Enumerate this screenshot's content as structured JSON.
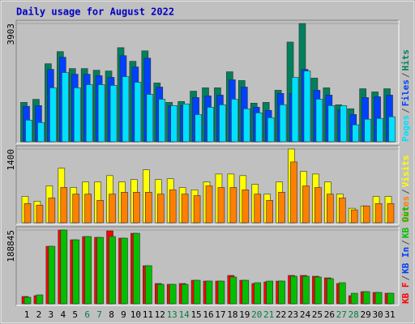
{
  "chart_data": [
    {
      "type": "bar",
      "title": "Daily usage for August 2022",
      "categories": [
        "1",
        "2",
        "3",
        "4",
        "5",
        "6",
        "7",
        "8",
        "9",
        "10",
        "11",
        "12",
        "13",
        "14",
        "15",
        "16",
        "17",
        "18",
        "19",
        "20",
        "21",
        "22",
        "23",
        "24",
        "25",
        "26",
        "27",
        "28",
        "29",
        "30",
        "31"
      ],
      "category_colors": [
        "#000000",
        "#000000",
        "#000000",
        "#000000",
        "#000000",
        "#008040",
        "#008040",
        "#000000",
        "#000000",
        "#000000",
        "#000000",
        "#000000",
        "#008040",
        "#008040",
        "#000000",
        "#000000",
        "#000000",
        "#000000",
        "#000000",
        "#008040",
        "#008040",
        "#000000",
        "#000000",
        "#000000",
        "#000000",
        "#000000",
        "#008040",
        "#008040",
        "#000000",
        "#000000",
        "#000000"
      ],
      "ylim": [
        0,
        3903
      ],
      "yticks": [
        3903
      ],
      "legend_separator": "/",
      "series": [
        {
          "name": "Hits",
          "color": "#00805c",
          "values": [
            1300,
            1400,
            2575,
            2975,
            2415,
            2415,
            2360,
            2335,
            3105,
            2655,
            3000,
            1940,
            1300,
            1330,
            1670,
            1780,
            1780,
            2310,
            2020,
            1275,
            1300,
            1700,
            3290,
            3903,
            2100,
            1780,
            1220,
            1090,
            1750,
            1645,
            1750
          ]
        },
        {
          "name": "Files",
          "color": "#0040ff",
          "values": [
            1170,
            1195,
            2390,
            2790,
            2230,
            2230,
            2180,
            2125,
            2840,
            2470,
            2760,
            1805,
            1195,
            1195,
            1460,
            1515,
            1540,
            2045,
            1805,
            1140,
            1035,
            1595,
            1595,
            2390,
            1700,
            1540,
            1060,
            900,
            1460,
            1485,
            1540
          ]
        },
        {
          "name": "Pages",
          "color": "#00e0ff",
          "values": [
            715,
            635,
            1780,
            2285,
            1780,
            1885,
            1885,
            1860,
            2150,
            1965,
            1565,
            1405,
            1195,
            1250,
            900,
            1140,
            1220,
            1405,
            1090,
            955,
            795,
            1220,
            2125,
            2335,
            1405,
            1195,
            1195,
            560,
            745,
            770,
            825
          ]
        }
      ]
    },
    {
      "type": "bar",
      "ylim": [
        0,
        1400
      ],
      "yticks": [
        1400
      ],
      "legend_separator": "/",
      "series": [
        {
          "name": "Visits",
          "color": "#ffff00",
          "values": [
            500,
            410,
            700,
            1035,
            670,
            775,
            775,
            895,
            775,
            820,
            1005,
            820,
            835,
            670,
            625,
            775,
            925,
            925,
            895,
            730,
            545,
            775,
            1400,
            975,
            925,
            775,
            545,
            275,
            320,
            500,
            500
          ]
        },
        {
          "name": "Sites",
          "color": "#ff8000",
          "values": [
            365,
            335,
            470,
            670,
            545,
            545,
            425,
            545,
            580,
            580,
            580,
            545,
            625,
            545,
            515,
            700,
            670,
            670,
            625,
            545,
            425,
            580,
            1155,
            700,
            670,
            545,
            470,
            245,
            320,
            365,
            365
          ]
        }
      ]
    },
    {
      "type": "bar",
      "ylim": [
        0,
        188845
      ],
      "yticks": [
        188845
      ],
      "legend_separator": "/",
      "legend_extra": {
        "name": "KB In",
        "color": "#0040ff"
      },
      "series": [
        {
          "name": "KB F",
          "color": "#ff0000",
          "values": [
            18700,
            20750,
            147300,
            188845,
            163900,
            172200,
            170150,
            186750,
            168100,
            180500,
            97500,
            51900,
            49800,
            51900,
            60200,
            58100,
            58100,
            72600,
            60200,
            51900,
            56000,
            58100,
            72600,
            72600,
            70550,
            66400,
            51900,
            20750,
            31100,
            29050,
            27000
          ]
        },
        {
          "name": "KB Out",
          "color": "#00c000",
          "values": [
            16600,
            22800,
            147300,
            188800,
            163900,
            172200,
            170100,
            172200,
            168100,
            180500,
            97500,
            49800,
            49800,
            49800,
            60200,
            58100,
            58100,
            68500,
            60200,
            53900,
            58100,
            58100,
            70500,
            70500,
            68500,
            64300,
            53900,
            26900,
            31100,
            29000,
            27000
          ]
        }
      ]
    }
  ]
}
